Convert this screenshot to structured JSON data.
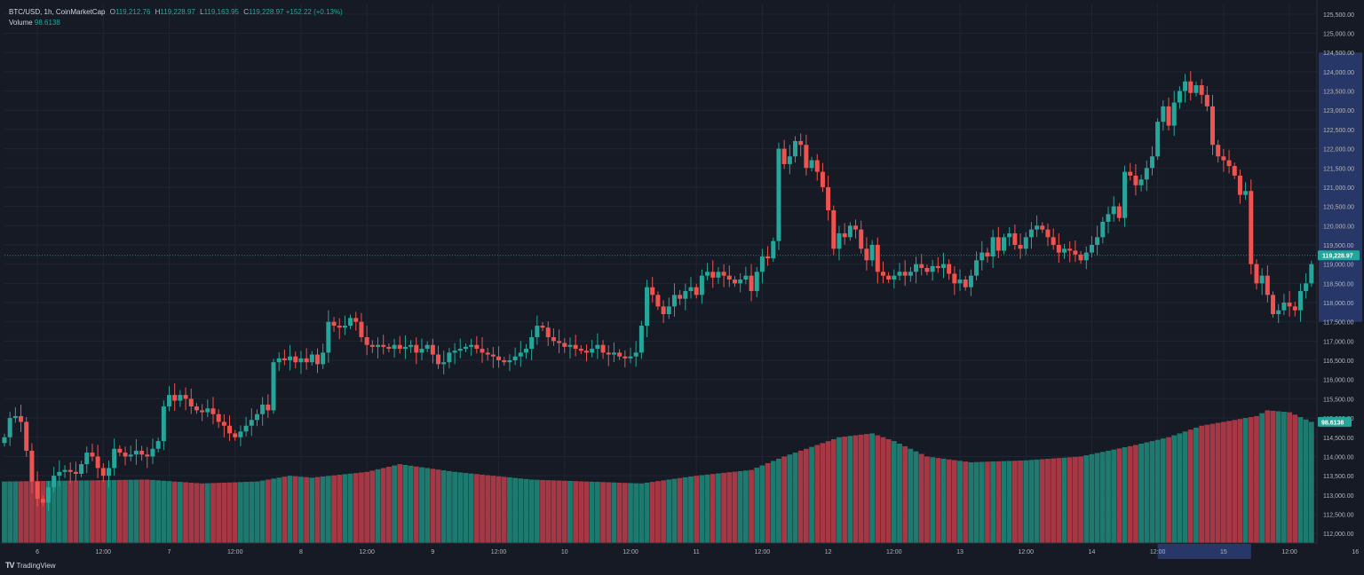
{
  "header": {
    "symbol": "BTC/USD, 1h, CoinMarketCap",
    "ohlc": {
      "o_label": "O",
      "o": "119,212.76",
      "h_label": "H",
      "h": "119,228.97",
      "l_label": "L",
      "l": "119,163.95",
      "c_label": "C",
      "c": "119,228.97",
      "change": "+152.22 (+0.13%)"
    },
    "volume_label": "Volume",
    "volume_value": "98.6138"
  },
  "footer": {
    "logo_text": "TradingView"
  },
  "colors": {
    "background": "#161a25",
    "grid": "#1f2533",
    "up": "#26a69a",
    "down": "#ef5350",
    "vol_up": "#1e7a6f",
    "vol_down": "#a63745",
    "axis_highlight": "#2a3d74",
    "text": "#b2b5be"
  },
  "chart_data": {
    "type": "candlestick",
    "timeframe": "1h",
    "y_range": [
      111750,
      125750
    ],
    "y_ticks": [
      112000,
      112500,
      113000,
      113500,
      114000,
      114500,
      115000,
      115500,
      116000,
      116500,
      117000,
      117500,
      118000,
      118500,
      119000,
      119500,
      120000,
      120500,
      121000,
      121500,
      122000,
      122500,
      123000,
      123500,
      124000,
      124500,
      125000,
      125500
    ],
    "y_tick_labels": [
      "112,000.00",
      "112,500.00",
      "113,000.00",
      "113,500.00",
      "114,000.00",
      "114,500.00",
      "115,000.00",
      "115,500.00",
      "116,000.00",
      "116,500.00",
      "117,000.00",
      "117,500.00",
      "118,000.00",
      "118,500.00",
      "119,000.00",
      "119,500.00",
      "120,000.00",
      "120,500.00",
      "121,000.00",
      "121,500.00",
      "122,000.00",
      "122,500.00",
      "123,000.00",
      "123,500.00",
      "124,000.00",
      "124,500.00",
      "125,000.00",
      "125,500.00"
    ],
    "x_range_hours": [
      -6,
      233
    ],
    "x_ticks": [
      {
        "hour": 0,
        "label": "6"
      },
      {
        "hour": 12,
        "label": "12:00"
      },
      {
        "hour": 24,
        "label": "7"
      },
      {
        "hour": 36,
        "label": "12:00"
      },
      {
        "hour": 48,
        "label": "8"
      },
      {
        "hour": 60,
        "label": "12:00"
      },
      {
        "hour": 72,
        "label": "9"
      },
      {
        "hour": 84,
        "label": "12:00"
      },
      {
        "hour": 96,
        "label": "10"
      },
      {
        "hour": 108,
        "label": "12:00"
      },
      {
        "hour": 120,
        "label": "11"
      },
      {
        "hour": 132,
        "label": "12:00"
      },
      {
        "hour": 144,
        "label": "12"
      },
      {
        "hour": 156,
        "label": "12:00"
      },
      {
        "hour": 168,
        "label": "13"
      },
      {
        "hour": 180,
        "label": "12:00"
      },
      {
        "hour": 192,
        "label": "14"
      },
      {
        "hour": 204,
        "label": "12:00"
      },
      {
        "hour": 216,
        "label": "15"
      },
      {
        "hour": 228,
        "label": "12:00"
      },
      {
        "hour": 240,
        "label": "16"
      }
    ],
    "price_highlight_range": [
      117500,
      124500
    ],
    "time_highlight_range_hours": [
      204,
      221
    ],
    "last_price": 119228.97,
    "last_price_label": "119,228.97",
    "last_volume_label": "98.6138",
    "close_path": [
      [
        -6,
        114500
      ],
      [
        -5,
        115000
      ],
      [
        -4,
        115050
      ],
      [
        -3,
        114900
      ],
      [
        -2,
        114150
      ],
      [
        -1,
        113350
      ],
      [
        0,
        112900
      ],
      [
        1,
        112800
      ],
      [
        2,
        113200
      ],
      [
        3,
        113500
      ],
      [
        4,
        113600
      ],
      [
        5,
        113650
      ],
      [
        6,
        113600
      ],
      [
        7,
        113550
      ],
      [
        8,
        113800
      ],
      [
        9,
        114100
      ],
      [
        10,
        114000
      ],
      [
        11,
        113700
      ],
      [
        12,
        113500
      ],
      [
        13,
        113700
      ],
      [
        14,
        114200
      ],
      [
        15,
        114100
      ],
      [
        16,
        114000
      ],
      [
        17,
        114050
      ],
      [
        18,
        114150
      ],
      [
        19,
        114050
      ],
      [
        20,
        114000
      ],
      [
        21,
        114200
      ],
      [
        22,
        114400
      ],
      [
        23,
        115300
      ],
      [
        24,
        115600
      ],
      [
        25,
        115450
      ],
      [
        26,
        115600
      ],
      [
        27,
        115500
      ],
      [
        28,
        115300
      ],
      [
        29,
        115200
      ],
      [
        30,
        115150
      ],
      [
        31,
        115250
      ],
      [
        32,
        115100
      ],
      [
        33,
        114900
      ],
      [
        34,
        114800
      ],
      [
        35,
        114600
      ],
      [
        36,
        114500
      ],
      [
        37,
        114650
      ],
      [
        38,
        114800
      ],
      [
        39,
        114950
      ],
      [
        40,
        115100
      ],
      [
        41,
        115350
      ],
      [
        42,
        115200
      ],
      [
        43,
        116450
      ],
      [
        44,
        116550
      ],
      [
        45,
        116500
      ],
      [
        46,
        116600
      ],
      [
        47,
        116450
      ],
      [
        48,
        116550
      ],
      [
        49,
        116450
      ],
      [
        50,
        116650
      ],
      [
        51,
        116400
      ],
      [
        52,
        116700
      ],
      [
        53,
        117500
      ],
      [
        54,
        117400
      ],
      [
        55,
        117350
      ],
      [
        56,
        117400
      ],
      [
        57,
        117600
      ],
      [
        58,
        117500
      ],
      [
        59,
        117100
      ],
      [
        60,
        116900
      ],
      [
        61,
        116850
      ],
      [
        62,
        116900
      ],
      [
        63,
        116850
      ],
      [
        64,
        116800
      ],
      [
        65,
        116900
      ],
      [
        66,
        116800
      ],
      [
        67,
        116850
      ],
      [
        68,
        116900
      ],
      [
        69,
        116700
      ],
      [
        70,
        116800
      ],
      [
        71,
        116900
      ],
      [
        72,
        116650
      ],
      [
        73,
        116400
      ],
      [
        74,
        116450
      ],
      [
        75,
        116700
      ],
      [
        76,
        116750
      ],
      [
        77,
        116800
      ],
      [
        78,
        116850
      ],
      [
        79,
        116900
      ],
      [
        80,
        116800
      ],
      [
        81,
        116700
      ],
      [
        82,
        116650
      ],
      [
        83,
        116600
      ],
      [
        84,
        116500
      ],
      [
        85,
        116450
      ],
      [
        86,
        116500
      ],
      [
        87,
        116600
      ],
      [
        88,
        116700
      ],
      [
        89,
        116800
      ],
      [
        90,
        117100
      ],
      [
        91,
        117400
      ],
      [
        92,
        117350
      ],
      [
        93,
        117100
      ],
      [
        94,
        117000
      ],
      [
        95,
        116950
      ],
      [
        96,
        116850
      ],
      [
        97,
        116900
      ],
      [
        98,
        116800
      ],
      [
        99,
        116750
      ],
      [
        100,
        116700
      ],
      [
        101,
        116800
      ],
      [
        102,
        116900
      ],
      [
        103,
        116700
      ],
      [
        104,
        116650
      ],
      [
        105,
        116700
      ],
      [
        106,
        116600
      ],
      [
        107,
        116550
      ],
      [
        108,
        116600
      ],
      [
        109,
        116700
      ],
      [
        110,
        117400
      ],
      [
        111,
        118400
      ],
      [
        112,
        118200
      ],
      [
        113,
        117900
      ],
      [
        114,
        117700
      ],
      [
        115,
        117900
      ],
      [
        116,
        118200
      ],
      [
        117,
        118100
      ],
      [
        118,
        118300
      ],
      [
        119,
        118400
      ],
      [
        120,
        118200
      ],
      [
        121,
        118700
      ],
      [
        122,
        118800
      ],
      [
        123,
        118650
      ],
      [
        124,
        118800
      ],
      [
        125,
        118700
      ],
      [
        126,
        118600
      ],
      [
        127,
        118500
      ],
      [
        128,
        118600
      ],
      [
        129,
        118700
      ],
      [
        130,
        118300
      ],
      [
        131,
        118800
      ],
      [
        132,
        119200
      ],
      [
        133,
        119150
      ],
      [
        134,
        119600
      ],
      [
        135,
        122000
      ],
      [
        136,
        121600
      ],
      [
        137,
        121800
      ],
      [
        138,
        122200
      ],
      [
        139,
        122100
      ],
      [
        140,
        121500
      ],
      [
        141,
        121700
      ],
      [
        142,
        121400
      ],
      [
        143,
        121000
      ],
      [
        144,
        120400
      ],
      [
        145,
        119400
      ],
      [
        146,
        119800
      ],
      [
        147,
        119700
      ],
      [
        148,
        120000
      ],
      [
        149,
        119900
      ],
      [
        150,
        119400
      ],
      [
        151,
        119100
      ],
      [
        152,
        119500
      ],
      [
        153,
        118800
      ],
      [
        154,
        118700
      ],
      [
        155,
        118600
      ],
      [
        156,
        118700
      ],
      [
        157,
        118800
      ],
      [
        158,
        118700
      ],
      [
        159,
        118800
      ],
      [
        160,
        119000
      ],
      [
        161,
        118900
      ],
      [
        162,
        118800
      ],
      [
        163,
        118950
      ],
      [
        164,
        118900
      ],
      [
        165,
        119000
      ],
      [
        166,
        118750
      ],
      [
        167,
        118500
      ],
      [
        168,
        118600
      ],
      [
        169,
        118400
      ],
      [
        170,
        118700
      ],
      [
        171,
        119100
      ],
      [
        172,
        119300
      ],
      [
        173,
        119200
      ],
      [
        174,
        119700
      ],
      [
        175,
        119350
      ],
      [
        176,
        119700
      ],
      [
        177,
        119800
      ],
      [
        178,
        119500
      ],
      [
        179,
        119400
      ],
      [
        180,
        119700
      ],
      [
        181,
        119900
      ],
      [
        182,
        120000
      ],
      [
        183,
        119900
      ],
      [
        184,
        119700
      ],
      [
        185,
        119500
      ],
      [
        186,
        119300
      ],
      [
        187,
        119400
      ],
      [
        188,
        119350
      ],
      [
        189,
        119250
      ],
      [
        190,
        119100
      ],
      [
        191,
        119300
      ],
      [
        192,
        119500
      ],
      [
        193,
        119700
      ],
      [
        194,
        120100
      ],
      [
        195,
        120300
      ],
      [
        196,
        120500
      ],
      [
        197,
        120200
      ],
      [
        198,
        121400
      ],
      [
        199,
        121300
      ],
      [
        200,
        121050
      ],
      [
        201,
        121200
      ],
      [
        202,
        121500
      ],
      [
        203,
        121800
      ],
      [
        204,
        122700
      ],
      [
        205,
        123100
      ],
      [
        206,
        122600
      ],
      [
        207,
        123200
      ],
      [
        208,
        123500
      ],
      [
        209,
        123750
      ],
      [
        210,
        123450
      ],
      [
        211,
        123650
      ],
      [
        212,
        123400
      ],
      [
        213,
        123100
      ],
      [
        214,
        122100
      ],
      [
        215,
        121800
      ],
      [
        216,
        121700
      ],
      [
        217,
        121550
      ],
      [
        218,
        121300
      ],
      [
        219,
        120800
      ],
      [
        220,
        120900
      ],
      [
        221,
        119000
      ],
      [
        222,
        118500
      ],
      [
        223,
        118700
      ],
      [
        224,
        118200
      ],
      [
        225,
        117700
      ],
      [
        226,
        117800
      ],
      [
        227,
        118000
      ],
      [
        228,
        117900
      ],
      [
        229,
        117800
      ],
      [
        230,
        118300
      ],
      [
        231,
        118500
      ],
      [
        232,
        119000
      ]
    ],
    "volume_profile": [
      [
        -6,
        113350
      ],
      [
        20,
        113400
      ],
      [
        30,
        113300
      ],
      [
        40,
        113350
      ],
      [
        46,
        113500
      ],
      [
        50,
        113450
      ],
      [
        60,
        113600
      ],
      [
        66,
        113800
      ],
      [
        76,
        113600
      ],
      [
        90,
        113400
      ],
      [
        110,
        113300
      ],
      [
        120,
        113500
      ],
      [
        130,
        113650
      ],
      [
        136,
        114000
      ],
      [
        142,
        114300
      ],
      [
        146,
        114500
      ],
      [
        152,
        114600
      ],
      [
        156,
        114400
      ],
      [
        162,
        114000
      ],
      [
        170,
        113850
      ],
      [
        180,
        113900
      ],
      [
        190,
        114000
      ],
      [
        200,
        114300
      ],
      [
        206,
        114500
      ],
      [
        212,
        114800
      ],
      [
        218,
        114950
      ],
      [
        222,
        115050
      ],
      [
        224,
        115200
      ],
      [
        228,
        115150
      ],
      [
        232,
        114900
      ]
    ]
  }
}
